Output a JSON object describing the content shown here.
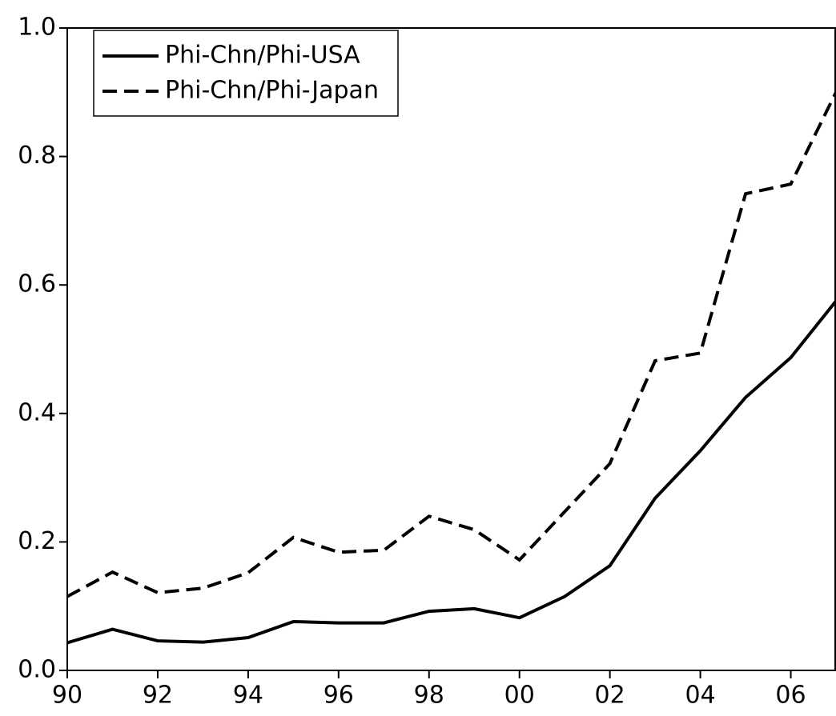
{
  "chart_data": {
    "type": "line",
    "x": [
      1990,
      1991,
      1992,
      1993,
      1994,
      1995,
      1996,
      1997,
      1998,
      1999,
      2000,
      2001,
      2002,
      2003,
      2004,
      2005,
      2006,
      2007
    ],
    "series": [
      {
        "name": "Phi-Chn/Phi-USA",
        "color": "#000000",
        "dash": "solid",
        "values": [
          0.043,
          0.064,
          0.046,
          0.044,
          0.051,
          0.076,
          0.074,
          0.074,
          0.092,
          0.096,
          0.082,
          0.115,
          0.163,
          0.268,
          0.342,
          0.425,
          0.487,
          0.575
        ]
      },
      {
        "name": "Phi-Chn/Phi-Japan",
        "color": "#000000",
        "dash": "dashed",
        "values": [
          0.115,
          0.153,
          0.121,
          0.128,
          0.152,
          0.207,
          0.184,
          0.187,
          0.24,
          0.219,
          0.172,
          0.247,
          0.322,
          0.482,
          0.494,
          0.742,
          0.757,
          0.9
        ]
      }
    ],
    "xlim": [
      1990,
      2007
    ],
    "xticks": [
      {
        "value": 1990,
        "label": "90"
      },
      {
        "value": 1992,
        "label": "92"
      },
      {
        "value": 1994,
        "label": "94"
      },
      {
        "value": 1996,
        "label": "96"
      },
      {
        "value": 1998,
        "label": "98"
      },
      {
        "value": 2000,
        "label": "00"
      },
      {
        "value": 2002,
        "label": "02"
      },
      {
        "value": 2004,
        "label": "04"
      },
      {
        "value": 2006,
        "label": "06"
      }
    ],
    "ylim": [
      0,
      1
    ],
    "yticks": [
      {
        "value": 0,
        "label": "0.0"
      },
      0.2,
      0.4,
      0.6,
      0.8,
      {
        "value": 1,
        "label": "1.0"
      }
    ],
    "legend": "upper-left"
  }
}
